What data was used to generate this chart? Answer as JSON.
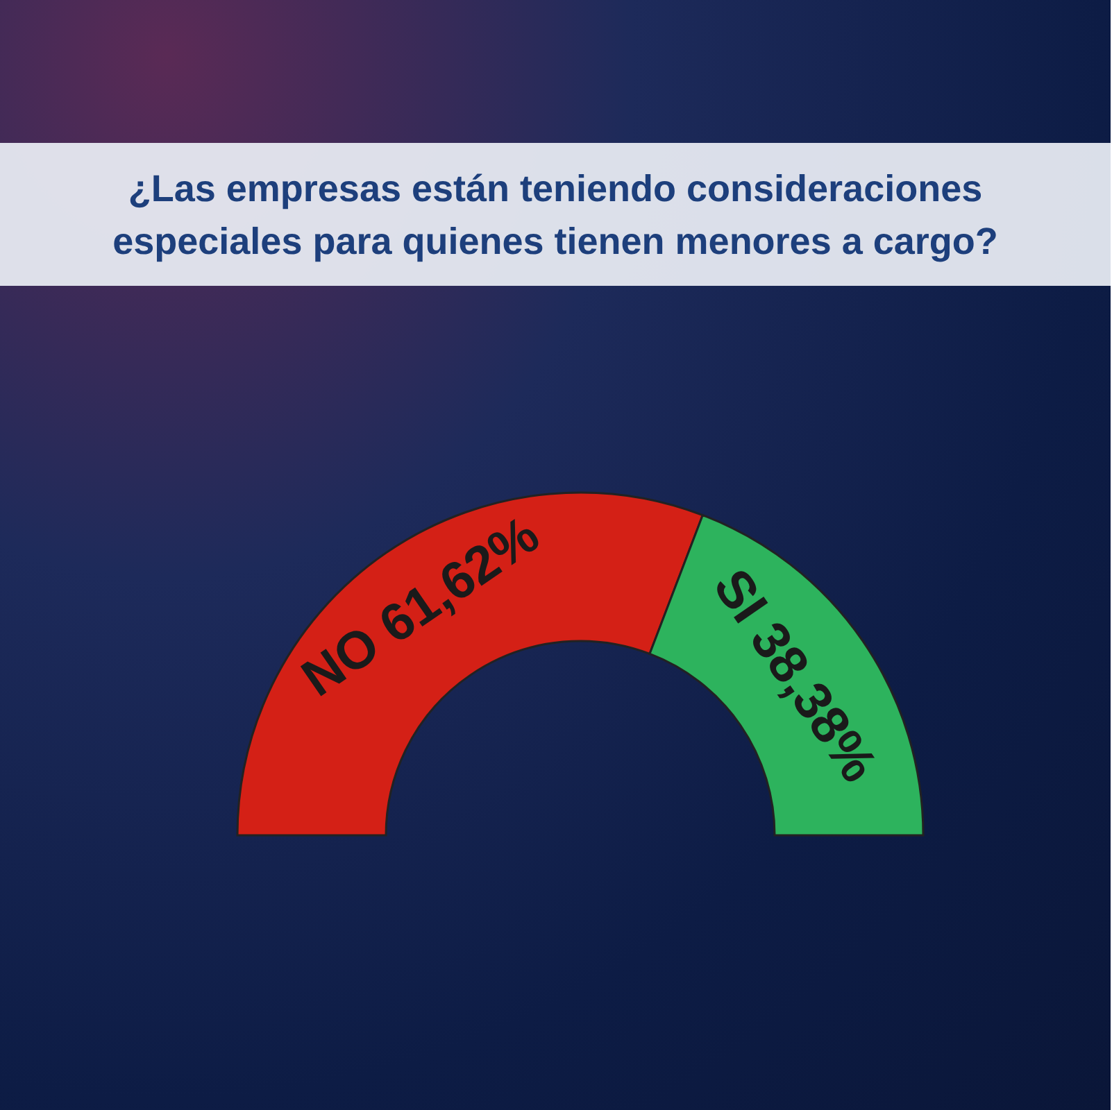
{
  "chart_data": {
    "type": "donut",
    "title": "¿Las empresas están teniendo consideraciones especiales para quienes tienen menores a cargo?",
    "categories": [
      "NO",
      "SI"
    ],
    "values": [
      61.62,
      38.38
    ],
    "colors": [
      "#d42016",
      "#2db35d"
    ],
    "value_labels": [
      "61,62%",
      "38,38%"
    ]
  }
}
